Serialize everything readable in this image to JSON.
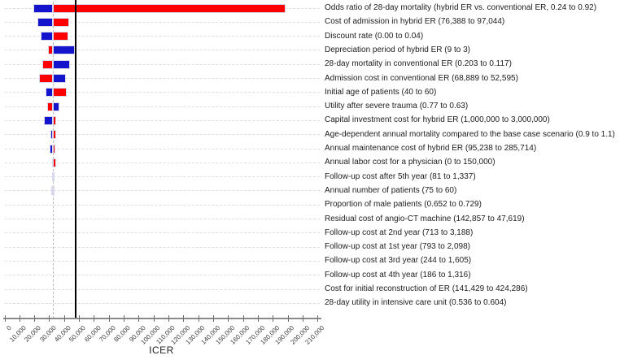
{
  "chart_data": {
    "type": "bar",
    "subtype": "tornado-sensitivity",
    "title": "",
    "xlabel": "ICER",
    "ylabel": "",
    "xlim": [
      0,
      210000
    ],
    "x_tick_step": 10000,
    "x_tick_labels": [
      "0",
      "10,000",
      "20,000",
      "30,000",
      "40,000",
      "50,000",
      "60,000",
      "70,000",
      "80,000",
      "90,000",
      "100,000",
      "110,000",
      "120,000",
      "130,000",
      "140,000",
      "150,000",
      "160,000",
      "170,000",
      "180,000",
      "190,000",
      "200,000",
      "210,000"
    ],
    "grid": "horizontal dashed per row",
    "legend": "none",
    "base_case_value": 32200,
    "vertical_reference_line_value": 47200,
    "colors": {
      "red": "#fe0000",
      "blue": "#1414cc",
      "grid": "#dedede",
      "base_line": "#b8b8b8",
      "reference_line": "#000000",
      "axis": "#8a8a8a"
    },
    "rows": [
      {
        "label": "Odds ratio of 28-day mortality (hybrid ER vs. conventional ER, 0.24 to 0.92)",
        "low": 19300,
        "high": 188300,
        "low_color": "blue",
        "high_color": "red"
      },
      {
        "label": "Cost of admission in hybrid ER (76,388 to 97,044)",
        "low": 22000,
        "high": 43200,
        "low_color": "blue",
        "high_color": "red"
      },
      {
        "label": "Discount rate (0.00 to 0.04)",
        "low": 23800,
        "high": 42800,
        "low_color": "blue",
        "high_color": "red"
      },
      {
        "label": "Depreciation period of hybrid ER (9 to 3)",
        "low": 28700,
        "high": 46900,
        "low_color": "red",
        "high_color": "blue"
      },
      {
        "label": "28-day mortality in conventional ER (0.203 to 0.117)",
        "low": 25300,
        "high": 43400,
        "low_color": "red",
        "high_color": "blue"
      },
      {
        "label": "Admission cost in conventional ER (68,889 to 52,595)",
        "low": 23000,
        "high": 41000,
        "low_color": "red",
        "high_color": "blue"
      },
      {
        "label": "Initial age of patients (40 to 60)",
        "low": 27400,
        "high": 41500,
        "low_color": "blue",
        "high_color": "red"
      },
      {
        "label": "Utility after severe trauma (0.77 to 0.63)",
        "low": 28500,
        "high": 36500,
        "low_color": "red",
        "high_color": "blue"
      },
      {
        "label": "Capital investment cost for hybrid ER (1,000,000 to 3,000,000)",
        "low": 26400,
        "high": 34500,
        "low_color": "blue",
        "high_color": "red"
      },
      {
        "label": "Age-dependent annual mortality compared to the base case scenario (0.9 to 1.1)",
        "low": 30700,
        "high": 34400,
        "low_color": "blue",
        "high_color": "red"
      },
      {
        "label": "Annual maintenance cost of hybrid ER (95,238 to 285,714)",
        "low": 30200,
        "high": 33800,
        "low_color": "blue",
        "high_color": "red"
      },
      {
        "label": "Annual labor cost for a physician (0 to 150,000)",
        "low": 31700,
        "high": 34400,
        "low_color": "blue",
        "high_color": "red"
      },
      {
        "label": "Follow-up cost after 5th year (81 to 1,337)",
        "low": 31400,
        "high": 33300,
        "low_color": "blue",
        "high_color": "red"
      },
      {
        "label": "Annual number of patients (75 to 60)",
        "low": 31000,
        "high": 33000,
        "low_color": "blue",
        "high_color": "red"
      },
      {
        "label": "Proportion of male patients (0.652 to 0.729)",
        "low": 32200,
        "high": 32200,
        "low_color": "blue",
        "high_color": "red"
      },
      {
        "label": "Residual cost of angio-CT machine (142,857 to 47,619)",
        "low": 32200,
        "high": 32200,
        "low_color": "blue",
        "high_color": "red"
      },
      {
        "label": "Follow-up cost at 2nd year (713 to 3,188)",
        "low": 32200,
        "high": 32200,
        "low_color": "blue",
        "high_color": "red"
      },
      {
        "label": "Follow-up cost at 1st year (793 to 2,098)",
        "low": 32200,
        "high": 32200,
        "low_color": "blue",
        "high_color": "red"
      },
      {
        "label": "Follow-up cost at 3rd year (244 to 1,605)",
        "low": 32200,
        "high": 32200,
        "low_color": "blue",
        "high_color": "red"
      },
      {
        "label": "Follow-up cost at 4th year (186 to 1,316)",
        "low": 32200,
        "high": 32200,
        "low_color": "blue",
        "high_color": "red"
      },
      {
        "label": "Cost for initial reconstruction of ER (141,429 to 424,286)",
        "low": 32200,
        "high": 32200,
        "low_color": "blue",
        "high_color": "red"
      },
      {
        "label": "28-day utility in intensive care unit (0.536 to 0.604)",
        "low": 32200,
        "high": 32200,
        "low_color": "blue",
        "high_color": "red"
      }
    ]
  }
}
